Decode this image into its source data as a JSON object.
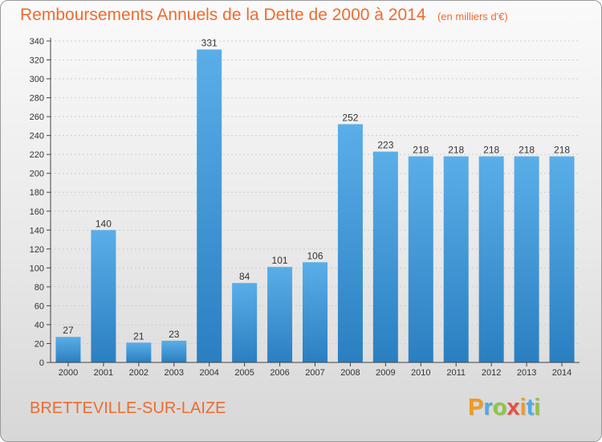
{
  "header": {
    "title": "Remboursements Annuels de la Dette de 2000 à 2014",
    "subtitle": "(en milliers d'€)"
  },
  "footer": {
    "commune": "BRETTEVILLE-SUR-LAIZE",
    "logo": "Proxiti"
  },
  "colors": {
    "title": "#ef6b2f",
    "bar_top": "#5aaee8",
    "bar_bottom": "#2a7fc1",
    "axis": "#444444",
    "grid": "#cfcfcf"
  },
  "chart_data": {
    "type": "bar",
    "title": "Remboursements Annuels de la Dette de 2000 à 2014",
    "subtitle": "(en milliers d'€)",
    "categories": [
      "2000",
      "2001",
      "2002",
      "2003",
      "2004",
      "2005",
      "2006",
      "2007",
      "2008",
      "2009",
      "2010",
      "2011",
      "2012",
      "2013",
      "2014"
    ],
    "values": [
      27,
      140,
      21,
      23,
      331,
      84,
      101,
      106,
      252,
      223,
      218,
      218,
      218,
      218,
      218
    ],
    "ylim": [
      0,
      340
    ],
    "yticks": [
      0,
      20,
      40,
      60,
      80,
      100,
      120,
      140,
      160,
      180,
      200,
      220,
      240,
      260,
      280,
      300,
      320,
      340
    ],
    "xlabel": "",
    "ylabel": "",
    "grid": true,
    "data_labels": true
  }
}
